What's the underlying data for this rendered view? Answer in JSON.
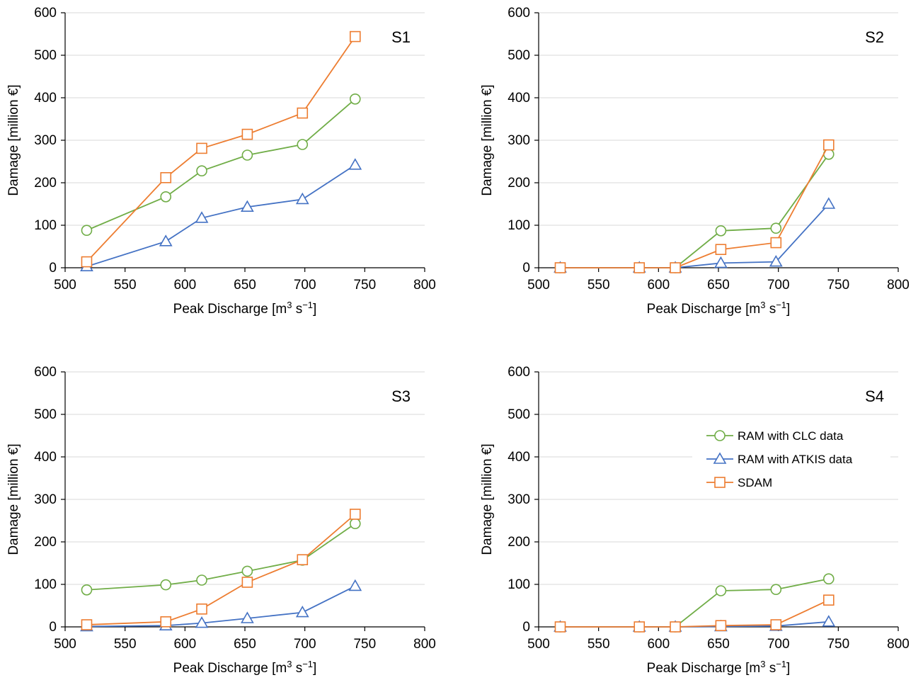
{
  "chart_data": [
    {
      "type": "line",
      "panel_label": "S1",
      "xlabel": {
        "main": "Peak Discharge [m",
        "sup1": "3",
        "mid": " s",
        "sup2": "−1",
        "end": "]"
      },
      "ylabel": "Damage [million €]",
      "xlim": [
        500,
        800
      ],
      "ylim": [
        0,
        600
      ],
      "x_ticks": [
        500,
        550,
        600,
        650,
        700,
        750,
        800
      ],
      "y_ticks": [
        0,
        100,
        200,
        300,
        400,
        500,
        600
      ],
      "x_tick_labels": [
        "500",
        "550",
        "600",
        "650",
        "700",
        "750",
        "800"
      ],
      "y_tick_labels": [
        "0",
        "100",
        "200",
        "300",
        "400",
        "500",
        "600"
      ],
      "grid": "horizontal",
      "x": [
        518,
        584,
        614,
        652,
        698,
        742
      ],
      "series": [
        {
          "key": "clc",
          "color": "#70AD47",
          "marker": "circle",
          "values": [
            88,
            167,
            228,
            265,
            290,
            397
          ]
        },
        {
          "key": "atkis",
          "color": "#4472C4",
          "marker": "triangle",
          "values": [
            3,
            62,
            117,
            143,
            161,
            242
          ]
        },
        {
          "key": "sdam",
          "color": "#ED7D31",
          "marker": "square",
          "values": [
            14,
            212,
            281,
            314,
            364,
            544
          ]
        }
      ]
    },
    {
      "type": "line",
      "panel_label": "S2",
      "xlabel": {
        "main": "Peak Discharge [m",
        "sup1": "3",
        "mid": " s",
        "sup2": "−1",
        "end": "]"
      },
      "ylabel": "Damage [million €]",
      "xlim": [
        500,
        800
      ],
      "ylim": [
        0,
        600
      ],
      "x_ticks": [
        500,
        550,
        600,
        650,
        700,
        750,
        800
      ],
      "y_ticks": [
        0,
        100,
        200,
        300,
        400,
        500,
        600
      ],
      "x_tick_labels": [
        "500",
        "550",
        "600",
        "650",
        "700",
        "750",
        "800"
      ],
      "y_tick_labels": [
        "0",
        "100",
        "200",
        "300",
        "400",
        "500",
        "600"
      ],
      "grid": "horizontal",
      "x": [
        518,
        584,
        614,
        652,
        698,
        742
      ],
      "series": [
        {
          "key": "clc",
          "color": "#70AD47",
          "marker": "circle",
          "values": [
            0,
            0,
            0,
            87,
            93,
            267
          ]
        },
        {
          "key": "atkis",
          "color": "#4472C4",
          "marker": "triangle",
          "values": [
            0,
            0,
            0,
            11,
            14,
            150
          ]
        },
        {
          "key": "sdam",
          "color": "#ED7D31",
          "marker": "square",
          "values": [
            0,
            0,
            0,
            43,
            59,
            289
          ]
        }
      ]
    },
    {
      "type": "line",
      "panel_label": "S3",
      "xlabel": {
        "main": "Peak Discharge [m",
        "sup1": "3",
        "mid": " s",
        "sup2": "−1",
        "end": "]"
      },
      "ylabel": "Damage [million €]",
      "xlim": [
        500,
        800
      ],
      "ylim": [
        0,
        600
      ],
      "x_ticks": [
        500,
        550,
        600,
        650,
        700,
        750,
        800
      ],
      "y_ticks": [
        0,
        100,
        200,
        300,
        400,
        500,
        600
      ],
      "x_tick_labels": [
        "500",
        "550",
        "600",
        "650",
        "700",
        "750",
        "800"
      ],
      "y_tick_labels": [
        "0",
        "100",
        "200",
        "300",
        "400",
        "500",
        "600"
      ],
      "grid": "horizontal",
      "x": [
        518,
        584,
        614,
        652,
        698,
        742
      ],
      "series": [
        {
          "key": "clc",
          "color": "#70AD47",
          "marker": "circle",
          "values": [
            87,
            99,
            110,
            131,
            157,
            243
          ]
        },
        {
          "key": "atkis",
          "color": "#4472C4",
          "marker": "triangle",
          "values": [
            1,
            3,
            9,
            20,
            34,
            96
          ]
        },
        {
          "key": "sdam",
          "color": "#ED7D31",
          "marker": "square",
          "values": [
            5,
            12,
            42,
            105,
            158,
            265
          ]
        }
      ]
    },
    {
      "type": "line",
      "panel_label": "S4",
      "xlabel": {
        "main": "Peak Discharge [m",
        "sup1": "3",
        "mid": " s",
        "sup2": "−1",
        "end": "]"
      },
      "ylabel": "Damage [million €]",
      "xlim": [
        500,
        800
      ],
      "ylim": [
        0,
        600
      ],
      "x_ticks": [
        500,
        550,
        600,
        650,
        700,
        750,
        800
      ],
      "y_ticks": [
        0,
        100,
        200,
        300,
        400,
        500,
        600
      ],
      "x_tick_labels": [
        "500",
        "550",
        "600",
        "650",
        "700",
        "750",
        "800"
      ],
      "y_tick_labels": [
        "0",
        "100",
        "200",
        "300",
        "400",
        "500",
        "600"
      ],
      "grid": "horizontal",
      "x": [
        518,
        584,
        614,
        652,
        698,
        742
      ],
      "series": [
        {
          "key": "clc",
          "color": "#70AD47",
          "marker": "circle",
          "values": [
            0,
            0,
            0,
            85,
            88,
            113
          ]
        },
        {
          "key": "atkis",
          "color": "#4472C4",
          "marker": "triangle",
          "values": [
            0,
            0,
            0,
            1,
            2,
            12
          ]
        },
        {
          "key": "sdam",
          "color": "#ED7D31",
          "marker": "square",
          "values": [
            0,
            0,
            0,
            3,
            5,
            63
          ]
        }
      ]
    }
  ],
  "legend": {
    "placement": "in S4 panel, upper-middle right",
    "entries": [
      {
        "key": "clc",
        "label": "RAM with CLC data",
        "color": "#70AD47",
        "marker": "circle"
      },
      {
        "key": "atkis",
        "label": "RAM with ATKIS data",
        "color": "#4472C4",
        "marker": "triangle"
      },
      {
        "key": "sdam",
        "label": "SDAM",
        "color": "#ED7D31",
        "marker": "square"
      }
    ]
  }
}
